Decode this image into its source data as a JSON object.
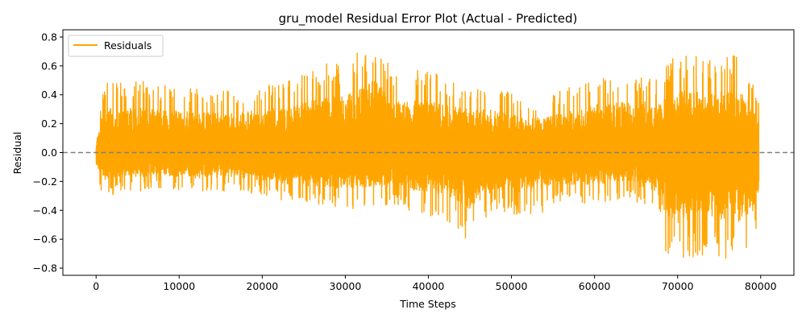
{
  "chart_data": {
    "type": "line",
    "title": "gru_model Residual Error Plot (Actual - Predicted)",
    "xlabel": "Time Steps",
    "ylabel": "Residual",
    "xlim": [
      -4000,
      84000
    ],
    "ylim": [
      -0.85,
      0.85
    ],
    "xticks": [
      0,
      10000,
      20000,
      30000,
      40000,
      50000,
      60000,
      70000,
      80000
    ],
    "xtick_labels": [
      "0",
      "10000",
      "20000",
      "30000",
      "40000",
      "50000",
      "60000",
      "70000",
      "80000"
    ],
    "yticks": [
      -0.8,
      -0.6,
      -0.4,
      -0.2,
      0.0,
      0.2,
      0.4,
      0.6,
      0.8
    ],
    "ytick_labels": [
      "−0.8",
      "−0.6",
      "−0.4",
      "−0.2",
      "0.0",
      "0.2",
      "0.4",
      "0.6",
      "0.8"
    ],
    "grid": false,
    "legend_position": "top-left",
    "reference_line": {
      "y": 0.0,
      "style": "dashed",
      "color": "#808080"
    },
    "series": [
      {
        "name": "Residuals",
        "color": "#ffa500",
        "x_range": [
          0,
          79800
        ],
        "envelope": {
          "x": [
            0,
            500,
            1000,
            3000,
            5000,
            8000,
            12000,
            16000,
            20000,
            24000,
            28000,
            30000,
            33500,
            36000,
            40000,
            43000,
            45000,
            48000,
            52000,
            56000,
            60000,
            64000,
            66000,
            67500,
            68500,
            70000,
            72000,
            74000,
            76000,
            78000,
            79800
          ],
          "upper": [
            0.12,
            0.3,
            0.5,
            0.48,
            0.5,
            0.47,
            0.44,
            0.43,
            0.48,
            0.52,
            0.64,
            0.62,
            0.79,
            0.55,
            0.58,
            0.5,
            0.48,
            0.48,
            0.36,
            0.43,
            0.53,
            0.55,
            0.56,
            0.52,
            0.62,
            0.67,
            0.68,
            0.65,
            0.68,
            0.66,
            0.35
          ],
          "lower": [
            -0.1,
            -0.25,
            -0.34,
            -0.26,
            -0.27,
            -0.25,
            -0.28,
            -0.27,
            -0.3,
            -0.36,
            -0.38,
            -0.4,
            -0.37,
            -0.37,
            -0.45,
            -0.5,
            -0.63,
            -0.4,
            -0.46,
            -0.35,
            -0.35,
            -0.32,
            -0.4,
            -0.42,
            -0.7,
            -0.77,
            -0.72,
            -0.7,
            -0.77,
            -0.75,
            -0.57
          ]
        }
      }
    ]
  }
}
